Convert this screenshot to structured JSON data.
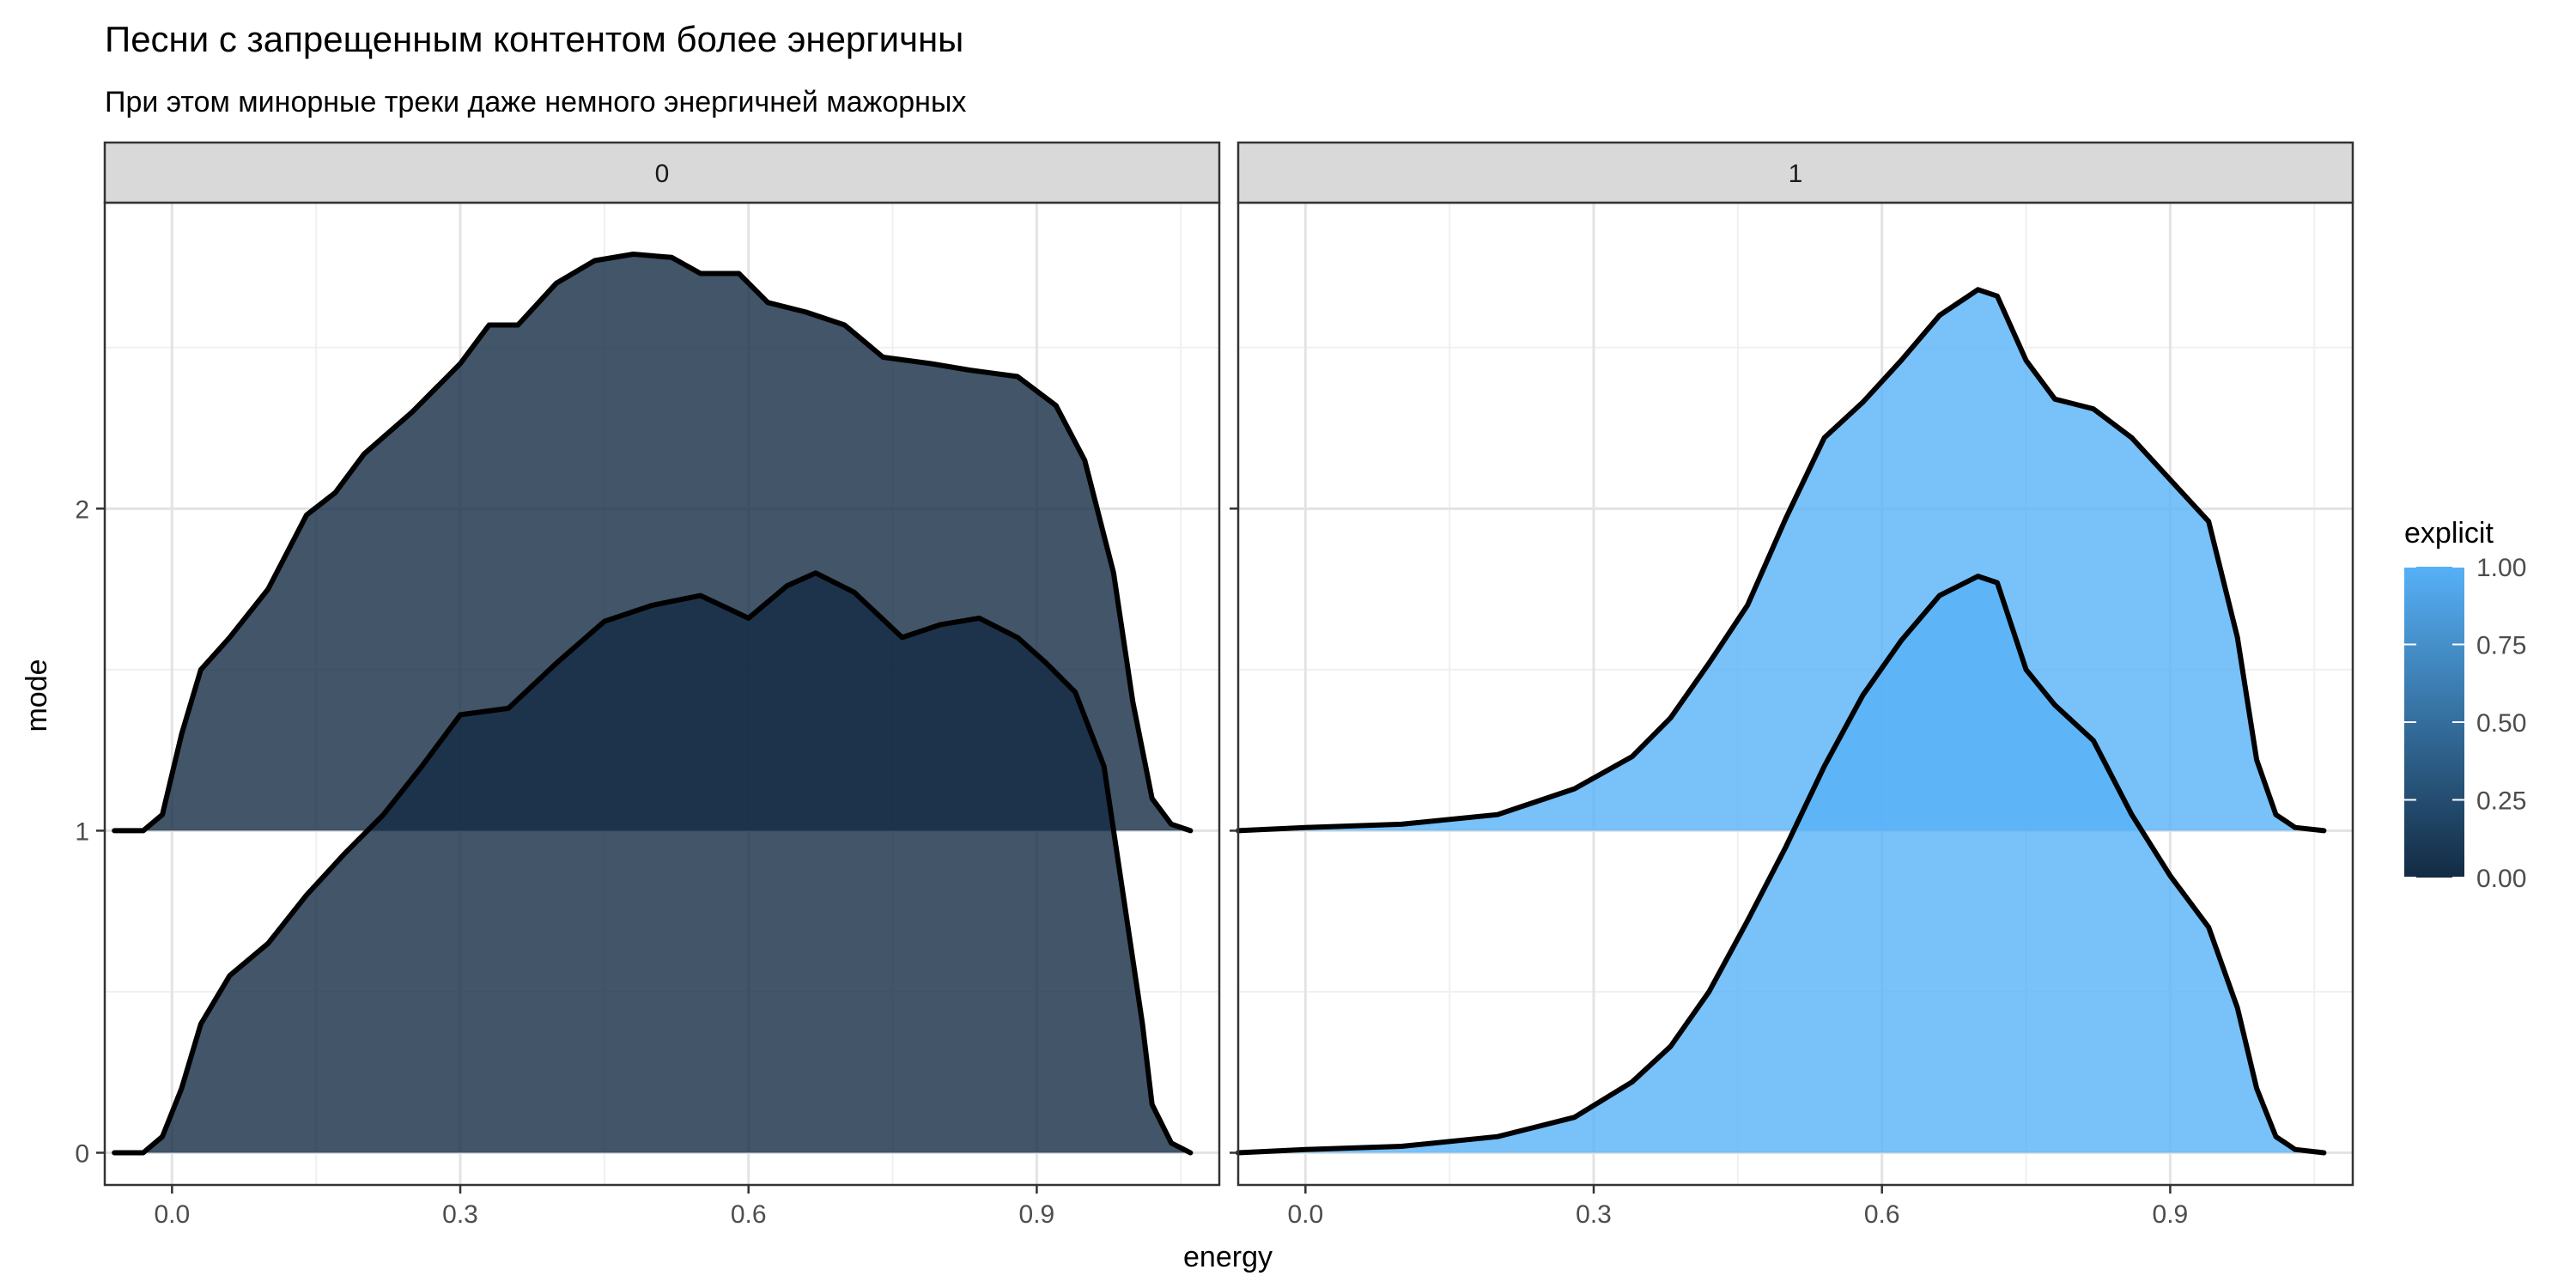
{
  "chart_data": {
    "type": "ridgeline",
    "title": "Песни с запрещенным контентом более энергичны",
    "subtitle": "При этом минорные треки даже немного энергичней мажорных",
    "xlabel": "energy",
    "ylabel": "mode",
    "xlim": [
      -0.07,
      1.09
    ],
    "ylim": [
      -0.1,
      2.95
    ],
    "x_ticks": [
      0.0,
      0.3,
      0.6,
      0.9
    ],
    "x_tick_labels": [
      "0.0",
      "0.3",
      "0.6",
      "0.9"
    ],
    "y_ticks": [
      0,
      1,
      2
    ],
    "y_tick_labels": [
      "0",
      "1",
      "2"
    ],
    "grid": true,
    "facet_variable": "explicit",
    "facets": [
      "0",
      "1"
    ],
    "legend": {
      "title": "explicit",
      "position": "right",
      "type": "colorbar",
      "range": [
        0.0,
        1.0
      ],
      "labels": [
        "1.00",
        "0.75",
        "0.50",
        "0.25",
        "0.00"
      ],
      "low_color": "#132B43",
      "high_color": "#56B1F7"
    },
    "colors": {
      "explicit_0": "#132B43",
      "explicit_1": "#56B1F7"
    },
    "series": [
      {
        "facet": "0",
        "mode": 0,
        "explicit": 0,
        "points": [
          [
            -0.06,
            0
          ],
          [
            -0.03,
            0.0
          ],
          [
            -0.01,
            0.05
          ],
          [
            0.01,
            0.2
          ],
          [
            0.03,
            0.4
          ],
          [
            0.06,
            0.55
          ],
          [
            0.1,
            0.65
          ],
          [
            0.14,
            0.8
          ],
          [
            0.18,
            0.93
          ],
          [
            0.22,
            1.05
          ],
          [
            0.26,
            1.2
          ],
          [
            0.3,
            1.36
          ],
          [
            0.35,
            1.38
          ],
          [
            0.4,
            1.52
          ],
          [
            0.45,
            1.65
          ],
          [
            0.5,
            1.7
          ],
          [
            0.55,
            1.73
          ],
          [
            0.6,
            1.66
          ],
          [
            0.64,
            1.76
          ],
          [
            0.67,
            1.8
          ],
          [
            0.71,
            1.74
          ],
          [
            0.76,
            1.6
          ],
          [
            0.8,
            1.64
          ],
          [
            0.84,
            1.66
          ],
          [
            0.88,
            1.6
          ],
          [
            0.91,
            1.52
          ],
          [
            0.94,
            1.43
          ],
          [
            0.97,
            1.2
          ],
          [
            0.99,
            0.8
          ],
          [
            1.01,
            0.4
          ],
          [
            1.02,
            0.15
          ],
          [
            1.04,
            0.03
          ],
          [
            1.06,
            0
          ]
        ]
      },
      {
        "facet": "0",
        "mode": 1,
        "explicit": 0,
        "points": [
          [
            -0.06,
            0
          ],
          [
            -0.03,
            0.0
          ],
          [
            -0.01,
            0.05
          ],
          [
            0.01,
            0.3
          ],
          [
            0.03,
            0.5
          ],
          [
            0.06,
            0.6
          ],
          [
            0.1,
            0.75
          ],
          [
            0.14,
            0.98
          ],
          [
            0.17,
            1.05
          ],
          [
            0.2,
            1.17
          ],
          [
            0.25,
            1.3
          ],
          [
            0.3,
            1.45
          ],
          [
            0.33,
            1.57
          ],
          [
            0.36,
            1.57
          ],
          [
            0.4,
            1.7
          ],
          [
            0.44,
            1.77
          ],
          [
            0.48,
            1.79
          ],
          [
            0.52,
            1.78
          ],
          [
            0.55,
            1.73
          ],
          [
            0.59,
            1.73
          ],
          [
            0.62,
            1.64
          ],
          [
            0.66,
            1.61
          ],
          [
            0.7,
            1.57
          ],
          [
            0.74,
            1.47
          ],
          [
            0.79,
            1.45
          ],
          [
            0.83,
            1.43
          ],
          [
            0.88,
            1.41
          ],
          [
            0.92,
            1.32
          ],
          [
            0.95,
            1.15
          ],
          [
            0.98,
            0.8
          ],
          [
            1.0,
            0.4
          ],
          [
            1.02,
            0.1
          ],
          [
            1.04,
            0.02
          ],
          [
            1.06,
            0
          ]
        ]
      },
      {
        "facet": "1",
        "mode": 0,
        "explicit": 1,
        "points": [
          [
            -0.07,
            0
          ],
          [
            0.0,
            0.01
          ],
          [
            0.1,
            0.02
          ],
          [
            0.2,
            0.05
          ],
          [
            0.28,
            0.11
          ],
          [
            0.34,
            0.22
          ],
          [
            0.38,
            0.33
          ],
          [
            0.42,
            0.5
          ],
          [
            0.46,
            0.72
          ],
          [
            0.5,
            0.95
          ],
          [
            0.54,
            1.2
          ],
          [
            0.58,
            1.42
          ],
          [
            0.62,
            1.59
          ],
          [
            0.66,
            1.73
          ],
          [
            0.7,
            1.79
          ],
          [
            0.72,
            1.77
          ],
          [
            0.75,
            1.5
          ],
          [
            0.78,
            1.39
          ],
          [
            0.82,
            1.28
          ],
          [
            0.86,
            1.05
          ],
          [
            0.9,
            0.86
          ],
          [
            0.94,
            0.7
          ],
          [
            0.97,
            0.45
          ],
          [
            0.99,
            0.2
          ],
          [
            1.01,
            0.05
          ],
          [
            1.03,
            0.01
          ],
          [
            1.06,
            0
          ]
        ]
      },
      {
        "facet": "1",
        "mode": 1,
        "explicit": 1,
        "points": [
          [
            -0.07,
            0
          ],
          [
            0.0,
            0.01
          ],
          [
            0.1,
            0.02
          ],
          [
            0.2,
            0.05
          ],
          [
            0.28,
            0.13
          ],
          [
            0.34,
            0.23
          ],
          [
            0.38,
            0.35
          ],
          [
            0.42,
            0.52
          ],
          [
            0.46,
            0.7
          ],
          [
            0.5,
            0.97
          ],
          [
            0.54,
            1.22
          ],
          [
            0.58,
            1.33
          ],
          [
            0.62,
            1.46
          ],
          [
            0.66,
            1.6
          ],
          [
            0.7,
            1.68
          ],
          [
            0.72,
            1.66
          ],
          [
            0.75,
            1.46
          ],
          [
            0.78,
            1.34
          ],
          [
            0.82,
            1.31
          ],
          [
            0.86,
            1.22
          ],
          [
            0.9,
            1.09
          ],
          [
            0.94,
            0.96
          ],
          [
            0.97,
            0.6
          ],
          [
            0.99,
            0.22
          ],
          [
            1.01,
            0.05
          ],
          [
            1.03,
            0.01
          ],
          [
            1.06,
            0
          ]
        ]
      }
    ]
  }
}
